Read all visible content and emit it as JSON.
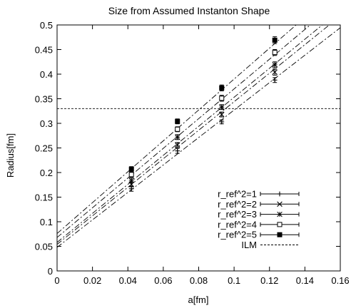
{
  "chart_data": {
    "type": "scatter",
    "title": "Size from Assumed Instanton Shape",
    "xlabel": "a[fm]",
    "ylabel": "Radius[fm]",
    "xlim": [
      0,
      0.16
    ],
    "ylim": [
      0,
      0.5
    ],
    "x_ticks": [
      "0",
      "0.02",
      "0.04",
      "0.06",
      "0.08",
      "0.1",
      "0.12",
      "0.14",
      "0.16"
    ],
    "y_ticks": [
      "0",
      "0.05",
      "0.1",
      "0.15",
      "0.2",
      "0.25",
      "0.3",
      "0.35",
      "0.4",
      "0.45",
      "0.5"
    ],
    "grid": false,
    "legend_position": "bottom-right",
    "series": [
      {
        "name": "r_ref^2=1",
        "marker": "plus",
        "x": [
          0.042,
          0.068,
          0.093,
          0.123
        ],
        "y": [
          0.167,
          0.244,
          0.303,
          0.388
        ],
        "err": [
          0.005,
          0.005,
          0.004,
          0.005
        ],
        "fit": {
          "intercept": 0.048,
          "slope": 2.79
        }
      },
      {
        "name": "r_ref^2=2",
        "marker": "cross",
        "x": [
          0.042,
          0.068,
          0.093,
          0.123
        ],
        "y": [
          0.176,
          0.256,
          0.318,
          0.404
        ],
        "err": [
          0.005,
          0.005,
          0.005,
          0.006
        ],
        "fit": {
          "intercept": 0.054,
          "slope": 2.9
        }
      },
      {
        "name": "r_ref^2=3",
        "marker": "asterisk",
        "x": [
          0.042,
          0.068,
          0.093,
          0.123
        ],
        "y": [
          0.184,
          0.272,
          0.333,
          0.419
        ],
        "err": [
          0.005,
          0.005,
          0.005,
          0.006
        ],
        "fit": {
          "intercept": 0.058,
          "slope": 2.95
        }
      },
      {
        "name": "r_ref^2=4",
        "marker": "open-square",
        "x": [
          0.042,
          0.068,
          0.093,
          0.123
        ],
        "y": [
          0.196,
          0.288,
          0.351,
          0.444
        ],
        "err": [
          0.005,
          0.005,
          0.006,
          0.006
        ],
        "fit": {
          "intercept": 0.068,
          "slope": 3.02
        }
      },
      {
        "name": "r_ref^2=5",
        "marker": "filled-square",
        "x": [
          0.042,
          0.068,
          0.093,
          0.123
        ],
        "y": [
          0.207,
          0.304,
          0.372,
          0.469
        ],
        "err": [
          0.005,
          0.005,
          0.006,
          0.007
        ],
        "fit": {
          "intercept": 0.076,
          "slope": 3.14
        }
      }
    ],
    "reference_line": {
      "name": "ILM",
      "y": 0.33
    },
    "colors": {
      "axes": "#000000",
      "lines": "#000000",
      "background": "#ffffff"
    }
  }
}
